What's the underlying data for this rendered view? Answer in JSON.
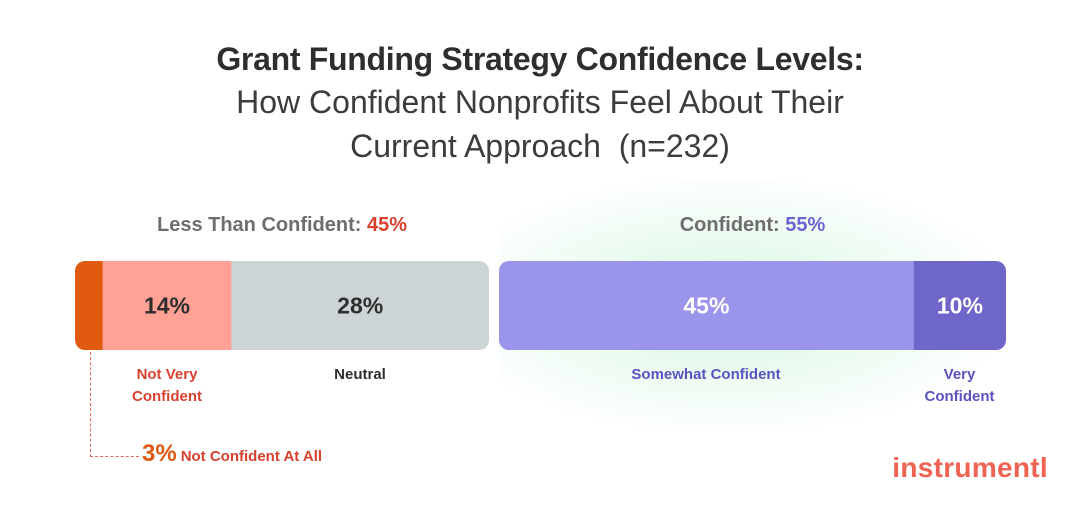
{
  "chart_data": {
    "type": "bar",
    "orientation": "horizontal",
    "stacked": true,
    "title": "Grant Funding Strategy Confidence Levels:",
    "subtitle": "How Confident Nonprofits Feel About Their Current Approach  (n=232)",
    "groups": [
      {
        "label": "Less Than Confident: ",
        "value_text": "45%",
        "value": 45,
        "color": "#d9412e"
      },
      {
        "label": "Confident: ",
        "value_text": "55%",
        "value": 55,
        "color": "#6d63d4"
      }
    ],
    "categories": [
      "Not Confident At All",
      "Not Very Confident",
      "Neutral",
      "Somewhat Confident",
      "Very Confident"
    ],
    "values": [
      3,
      14,
      28,
      45,
      10
    ],
    "value_labels": [
      "3%",
      "14%",
      "28%",
      "45%",
      "10%"
    ],
    "category_labels": [
      "Not Confident At All",
      "Not Very\nConfident",
      "Neutral",
      "Somewhat Confident",
      "Very\nConfident"
    ],
    "colors": [
      "#e05a0f",
      "#ffa195",
      "#ccd4d6",
      "#9a94ea",
      "#6e66c8"
    ],
    "label_colors": [
      "#d9412e",
      "#d9412e",
      "#2e2e2e",
      "#5b52c2",
      "#5b52c2"
    ],
    "value_text_colors": [
      "#de5a10",
      "#2e2e2e",
      "#2e2e2e",
      "#ffffff",
      "#ffffff"
    ],
    "grid": false,
    "xlim": [
      0,
      100
    ]
  },
  "brand": "instrumentl"
}
